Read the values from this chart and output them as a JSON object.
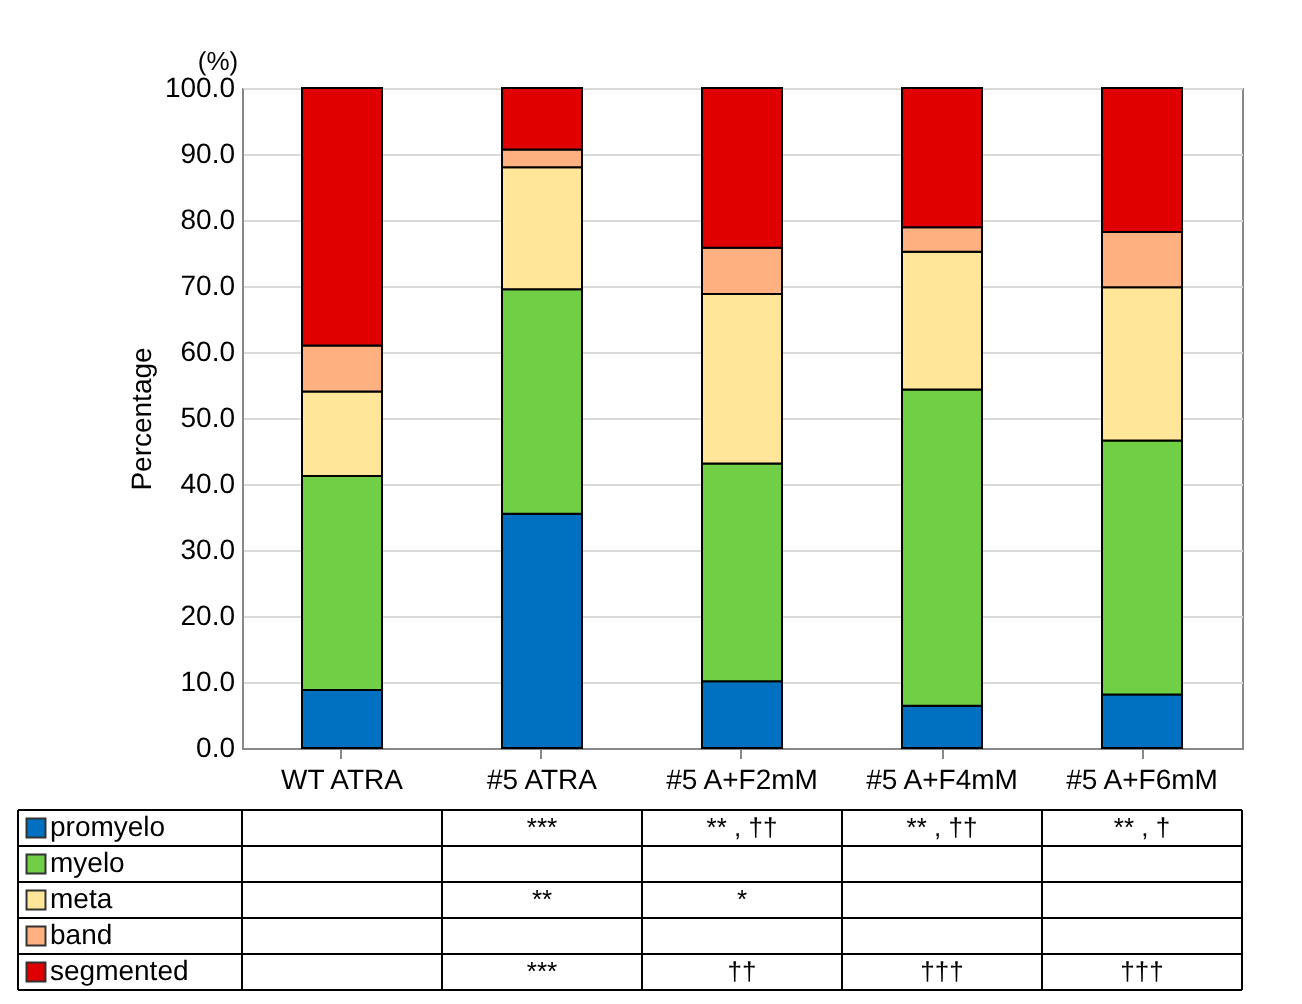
{
  "chart_data": {
    "type": "bar",
    "stacked": true,
    "ylabel": "Percentage",
    "annotations": [
      "(%)"
    ],
    "categories": [
      "WT ATRA",
      "#5 ATRA",
      "#5 A+F2mM",
      "#5 A+F4mM",
      "#5 A+F6mM"
    ],
    "series": [
      {
        "name": "promyelo",
        "color": "#0070c0",
        "values": [
          8.8,
          35.5,
          10.1,
          6.4,
          8.1
        ],
        "value_labels": [
          null,
          "***",
          "** , ††",
          "** , ††",
          "** , †"
        ]
      },
      {
        "name": "myelo",
        "color": "#70cf45",
        "values": [
          32.4,
          34.0,
          33.0,
          47.9,
          38.5
        ],
        "value_labels": [
          null,
          null,
          null,
          null,
          null
        ]
      },
      {
        "name": "meta",
        "color": "#ffe699",
        "values": [
          12.8,
          18.5,
          25.7,
          20.9,
          23.2
        ],
        "value_labels": [
          null,
          "**",
          "*",
          null,
          null
        ]
      },
      {
        "name": "band",
        "color": "#ffb080",
        "values": [
          7.0,
          2.7,
          7.0,
          3.7,
          8.4
        ],
        "value_labels": [
          null,
          null,
          null,
          null,
          null
        ]
      },
      {
        "name": "segmented",
        "color": "#e00000",
        "values": [
          39.0,
          9.3,
          24.2,
          21.1,
          21.8
        ],
        "value_labels": [
          null,
          "***",
          "††",
          "†††",
          "†††"
        ]
      }
    ],
    "ylim": [
      0,
      100
    ],
    "yticks": [
      {
        "value": 0,
        "label": "0.0"
      },
      {
        "value": 10,
        "label": "10.0"
      },
      {
        "value": 20,
        "label": "20.0"
      },
      {
        "value": 30,
        "label": "30.0"
      },
      {
        "value": 40,
        "label": "40.0"
      },
      {
        "value": 50,
        "label": "50.0"
      },
      {
        "value": 60,
        "label": "60.0"
      },
      {
        "value": 70,
        "label": "70.0"
      },
      {
        "value": 80,
        "label": "80.0"
      },
      {
        "value": 90,
        "label": "90.0"
      },
      {
        "value": 100,
        "label": "100.0"
      }
    ],
    "grid": "y",
    "legend": "bottom"
  }
}
